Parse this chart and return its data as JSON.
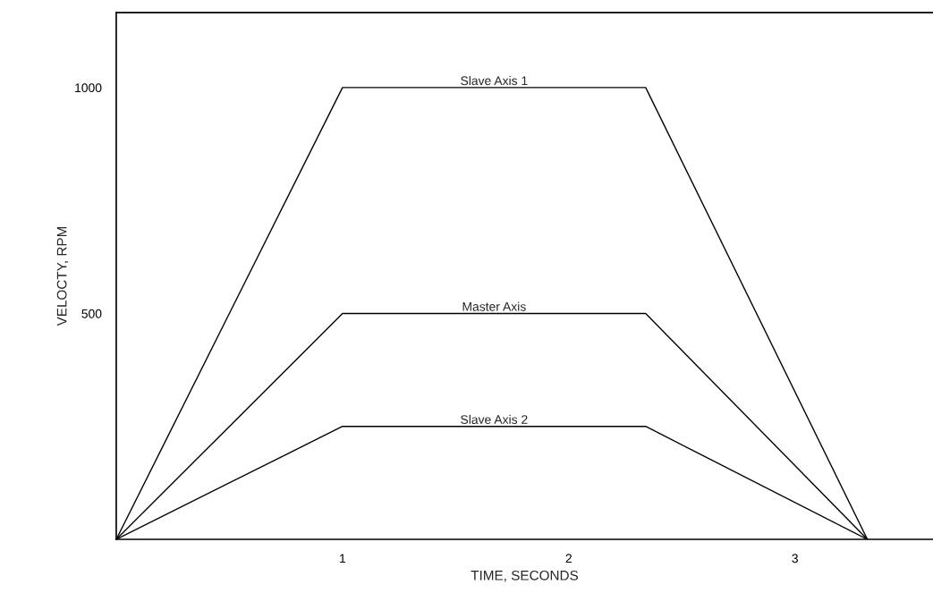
{
  "chart_data": {
    "type": "line",
    "xlabel": "TIME, SECONDS",
    "ylabel": "VELOCTY, RPM",
    "x": [
      0,
      1,
      2.34,
      3.32
    ],
    "series": [
      {
        "name": "Slave Axis 1",
        "color": "#000000",
        "values": [
          0,
          1000,
          1000,
          0
        ]
      },
      {
        "name": "Master Axis",
        "color": "#000000",
        "values": [
          0,
          500,
          500,
          0
        ]
      },
      {
        "name": "Slave Axis 2",
        "color": "#000000",
        "values": [
          0,
          250,
          250,
          0
        ]
      }
    ],
    "xlim": [
      0,
      3.61
    ],
    "ylim": [
      0,
      1166
    ],
    "xticks": [
      1,
      2,
      3
    ],
    "yticks": [
      500,
      1000
    ],
    "grid": false,
    "legend": false,
    "marker": "none",
    "line_style": "solid"
  }
}
